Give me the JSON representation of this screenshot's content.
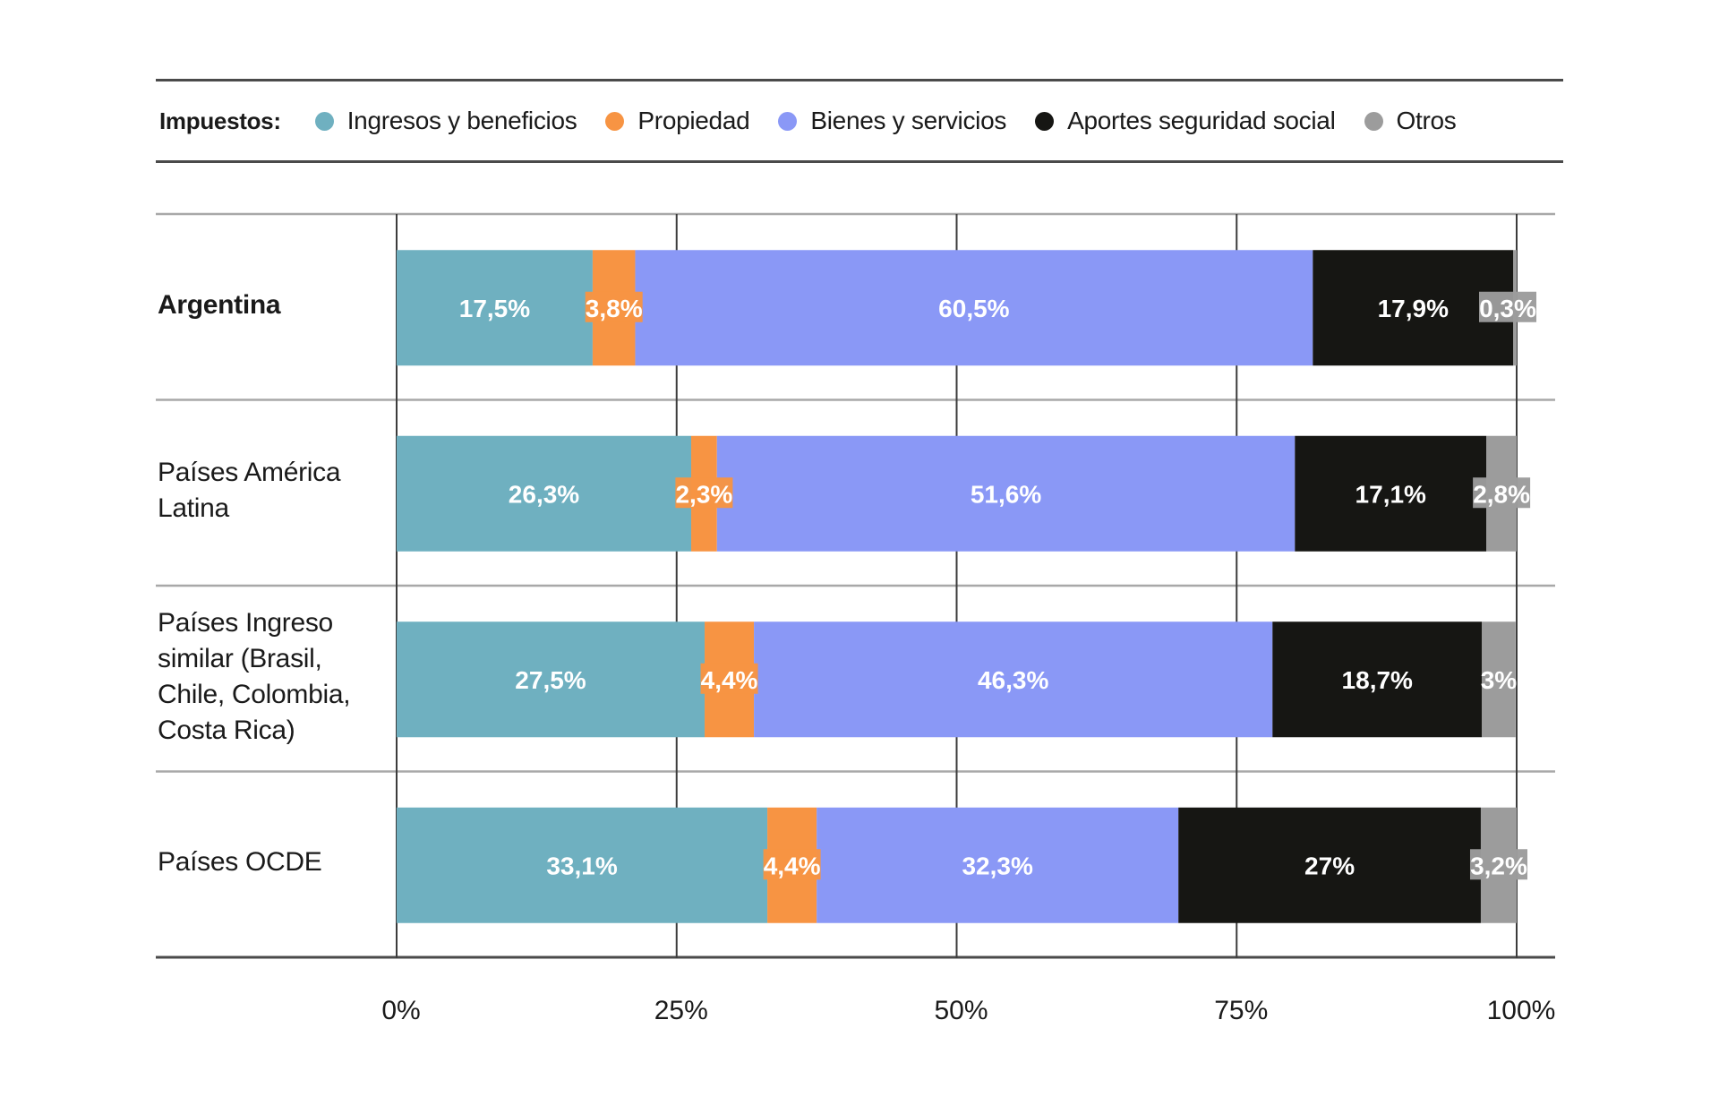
{
  "legend": {
    "title": "Impuestos:",
    "items": [
      {
        "key": "ingresos",
        "label": "Ingresos y beneficios",
        "color": "#6fb0c0"
      },
      {
        "key": "propiedad",
        "label": "Propiedad",
        "color": "#f79443"
      },
      {
        "key": "bienes",
        "label": "Bienes y servicios",
        "color": "#8a98f6"
      },
      {
        "key": "aportes",
        "label": "Aportes seguridad social",
        "color": "#161613"
      },
      {
        "key": "otros",
        "label": "Otros",
        "color": "#9c9c9c"
      }
    ]
  },
  "chart_data": {
    "type": "bar",
    "orientation": "horizontal",
    "stacked": true,
    "normalized": true,
    "title": "",
    "xlabel": "",
    "ylabel": "",
    "xlim": [
      0,
      100
    ],
    "grid": true,
    "legend_position": "top",
    "categories": [
      "Argentina",
      "Países América Latina",
      "Países Ingreso similar (Brasil, Chile, Colombia, Costa Rica)",
      "Países OCDE"
    ],
    "category_lines": [
      [
        "Argentina"
      ],
      [
        "Países América",
        "Latina"
      ],
      [
        "Países Ingreso",
        "similar (Brasil,",
        "Chile, Colombia,",
        "Costa Rica)"
      ],
      [
        "Países OCDE"
      ]
    ],
    "highlight_category": "Argentina",
    "x_ticks": [
      0,
      25,
      50,
      75,
      100
    ],
    "x_tick_labels": [
      "0%",
      "25%",
      "50%",
      "75%",
      "100%"
    ],
    "series": [
      {
        "name": "Ingresos y beneficios",
        "values": [
          17.5,
          26.3,
          27.5,
          33.1
        ],
        "labels": [
          "17,5%",
          "26,3%",
          "27,5%",
          "33,1%"
        ]
      },
      {
        "name": "Propiedad",
        "values": [
          3.8,
          2.3,
          4.4,
          4.4
        ],
        "labels": [
          "3,8%",
          "2,3%",
          "4,4%",
          "4,4%"
        ]
      },
      {
        "name": "Bienes y servicios",
        "values": [
          60.5,
          51.6,
          46.3,
          32.3
        ],
        "labels": [
          "60,5%",
          "51,6%",
          "46,3%",
          "32,3%"
        ]
      },
      {
        "name": "Aportes seguridad social",
        "values": [
          17.9,
          17.1,
          18.7,
          27
        ],
        "labels": [
          "17,9%",
          "17,1%",
          "18,7%",
          "27%"
        ]
      },
      {
        "name": "Otros",
        "values": [
          0.3,
          2.8,
          3,
          3.2
        ],
        "labels": [
          "0,3%",
          "2,8%",
          "3%",
          "3,2%"
        ]
      }
    ]
  }
}
